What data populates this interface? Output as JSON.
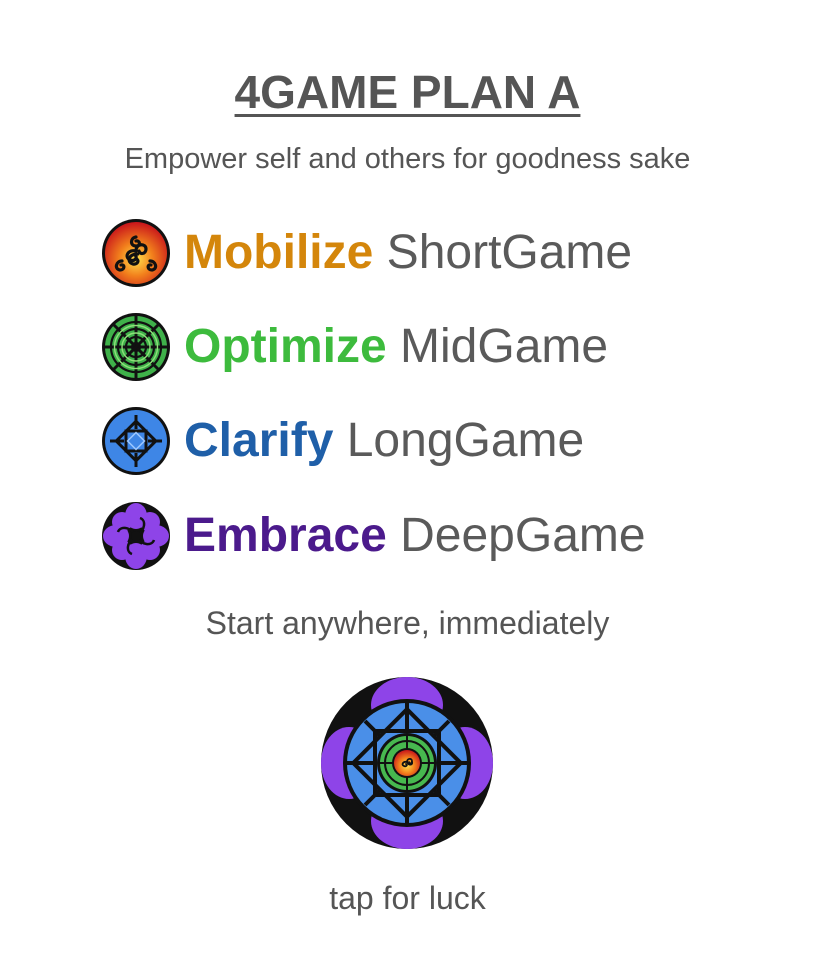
{
  "header": {
    "title": "4GAME PLAN A",
    "subtitle": "Empower self and others for goodness sake"
  },
  "games": [
    {
      "verb": "Mobilize",
      "game": "ShortGame",
      "verb_color": "#D4860B",
      "icon": "triskele-sun-icon"
    },
    {
      "verb": "Optimize",
      "game": "MidGame",
      "verb_color": "#3DBB3D",
      "icon": "green-mandala-icon"
    },
    {
      "verb": "Clarify",
      "game": "LongGame",
      "verb_color": "#1F5FA8",
      "icon": "blue-knot-icon"
    },
    {
      "verb": "Embrace",
      "game": "DeepGame",
      "verb_color": "#4B1A8C",
      "icon": "purple-swirl-icon"
    }
  ],
  "tagline": "Start anywhere, immediately",
  "luck": {
    "icon": "luck-mandala-icon",
    "label": "tap for luck"
  }
}
